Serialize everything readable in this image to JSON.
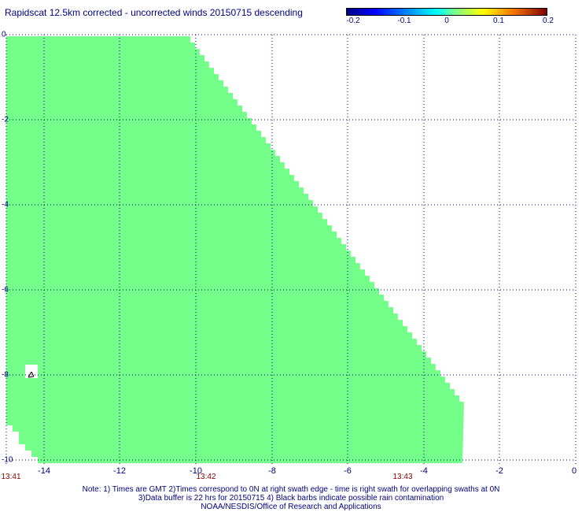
{
  "title": "Rapidscat 12.5km corrected - uncorrected winds 20150715 descending",
  "colorbar": {
    "ticks": [
      "-0.2",
      "-0.1",
      "0",
      "0.1",
      "0.2"
    ],
    "colors": [
      "#000080",
      "#0000ff",
      "#00ffff",
      "#ffff00",
      "#ff8000",
      "#800000"
    ]
  },
  "map": {
    "fill_color": "#73ff8a",
    "grid_color": "#000080",
    "x_ticks": [
      "-14",
      "-12",
      "-10",
      "-8",
      "-6",
      "-4",
      "-2",
      "0"
    ],
    "y_ticks": [
      "0",
      "-2",
      "-4",
      "-6",
      "-8",
      "-10"
    ],
    "time_labels": [
      "13:41",
      "13:42",
      "13:43"
    ]
  },
  "notes": {
    "line1": "Note: 1) Times are GMT 2)Times correspond to 0N at right swath edge - time is right swath for overlapping swaths at 0N",
    "line2": "3)Data buffer is 22 hrs for 20150715 4) Black barbs indicate possible rain contamination",
    "line3": "NOAA/NESDIS/Office of Research and Applications"
  }
}
